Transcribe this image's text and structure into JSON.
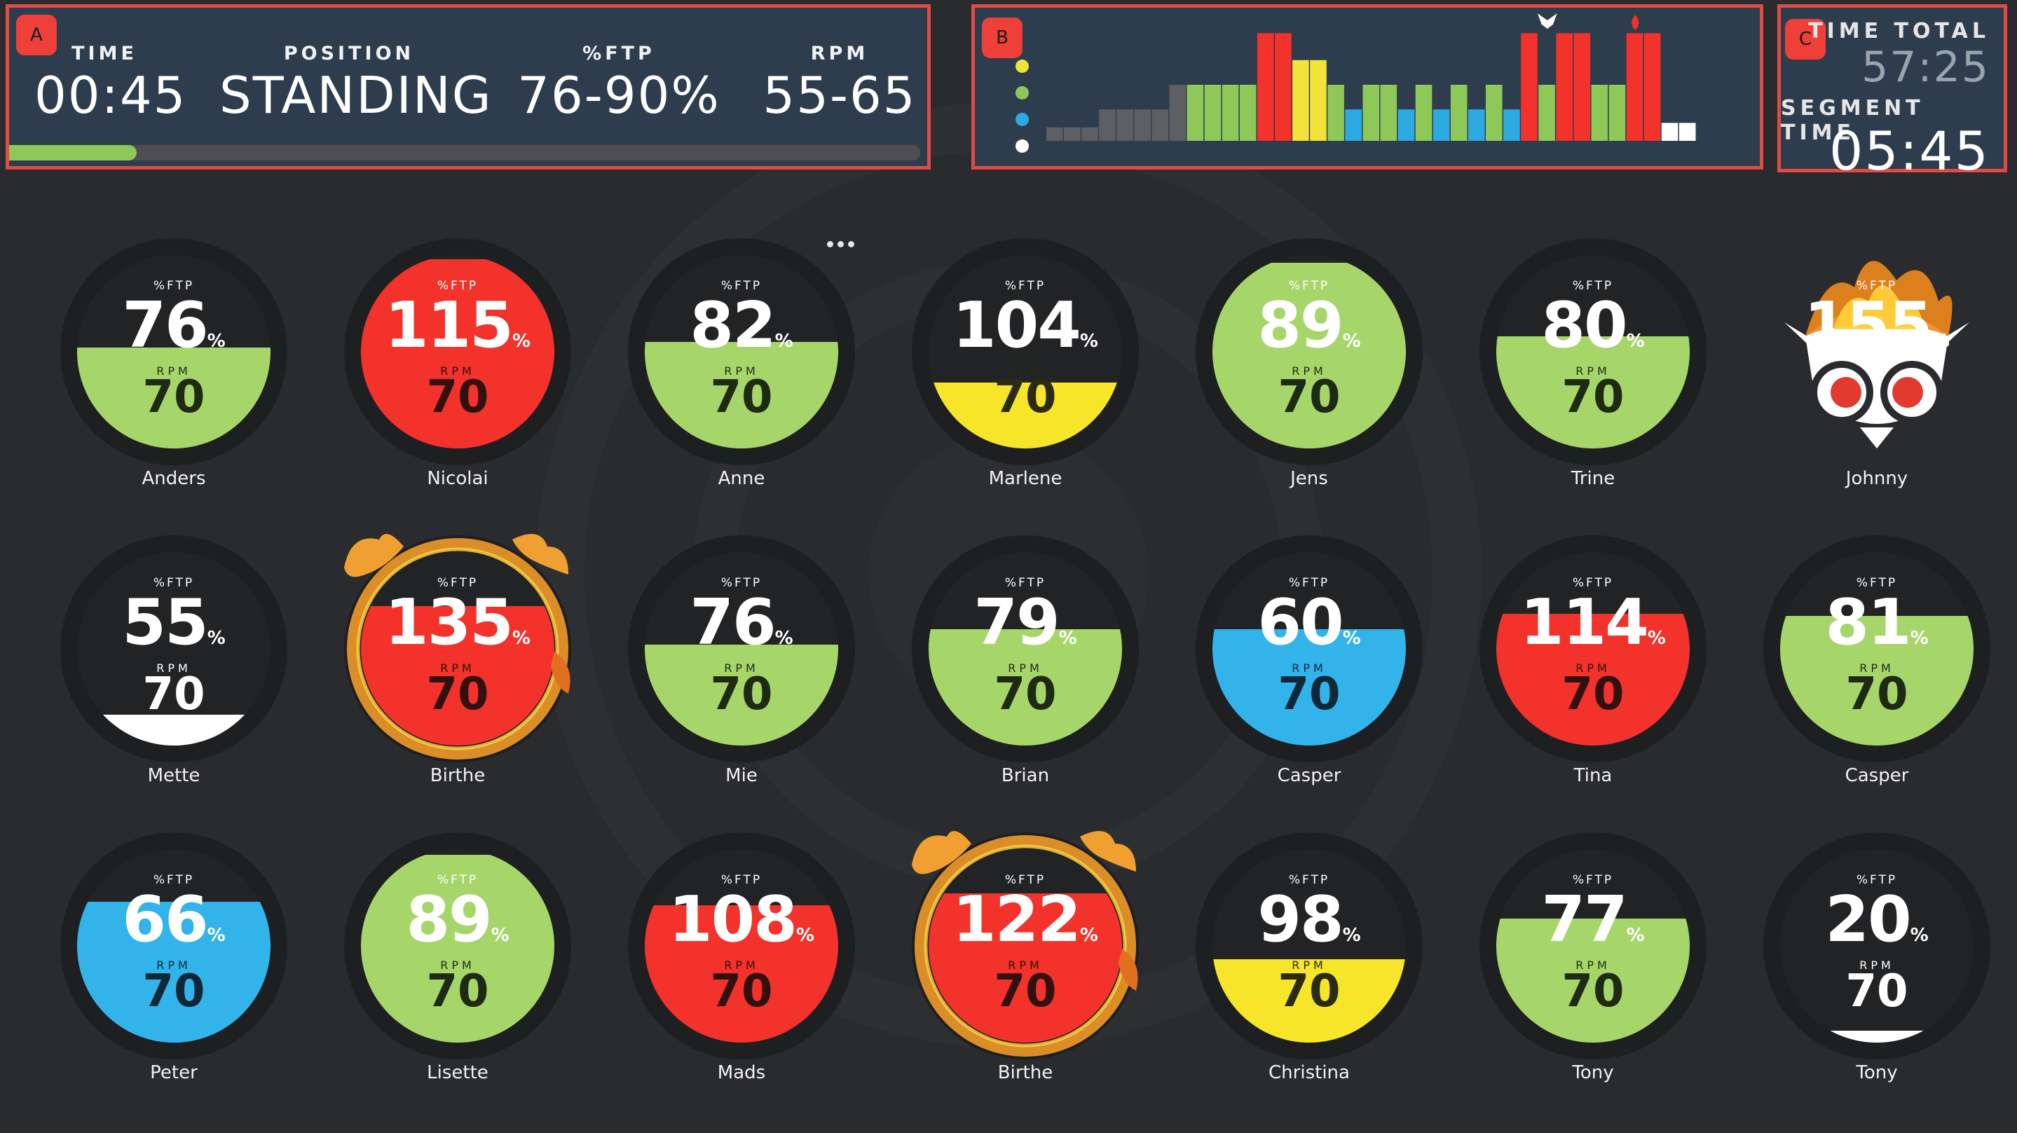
{
  "panels": {
    "a": {
      "badge": "A",
      "time_label": "TIME",
      "time_value": "00:45",
      "position_label": "POSITION",
      "position_value": "STANDING",
      "ftp_label": "%FTP",
      "ftp_value": "76-90%",
      "rpm_label": "RPM",
      "rpm_value": "55-65",
      "segment_progress": 0.14
    },
    "b": {
      "badge": "B",
      "zone_colors": [
        "#f2e23a",
        "#8ec859",
        "#2eaae2",
        "#ffffff"
      ],
      "icons": [
        "owl-icon",
        "flame-icon"
      ]
    },
    "c": {
      "badge": "C",
      "time_total_label": "TIME TOTAL",
      "time_total_value": "57:25",
      "segment_time_label": "SEGMENT TIME",
      "segment_time_value": "05:45"
    }
  },
  "zone_colors": {
    "green": "#a6d66a",
    "red": "#f2322b",
    "yellow": "#f6e529",
    "blue": "#32b4ea",
    "white": "#ffffff"
  },
  "riders": [
    {
      "name": "Anders",
      "ftp": "76",
      "rpm": "70",
      "zone": "green",
      "level": 0.52
    },
    {
      "name": "Nicolai",
      "ftp": "115",
      "rpm": "70",
      "zone": "red",
      "level": 0.98
    },
    {
      "name": "Anne",
      "ftp": "82",
      "rpm": "70",
      "zone": "green",
      "level": 0.55
    },
    {
      "name": "Marlene",
      "ftp": "104",
      "rpm": "70",
      "zone": "yellow",
      "level": 0.34
    },
    {
      "name": "Jens",
      "ftp": "89",
      "rpm": "70",
      "zone": "green",
      "level": 0.96
    },
    {
      "name": "Trine",
      "ftp": "80",
      "rpm": "70",
      "zone": "green",
      "level": 0.58
    },
    {
      "name": "Johnny",
      "ftp": "155",
      "rpm": "",
      "zone": "owl",
      "level": 1.0
    },
    {
      "name": "Mette",
      "ftp": "55",
      "rpm": "70",
      "zone": "white",
      "level": 0.16
    },
    {
      "name": "Birthe",
      "ftp": "135",
      "rpm": "70",
      "zone": "red",
      "level": 0.72,
      "fire": true
    },
    {
      "name": "Mie",
      "ftp": "76",
      "rpm": "70",
      "zone": "green",
      "level": 0.52
    },
    {
      "name": "Brian",
      "ftp": "79",
      "rpm": "70",
      "zone": "green",
      "level": 0.6
    },
    {
      "name": "Casper",
      "ftp": "60",
      "rpm": "70",
      "zone": "blue",
      "level": 0.6
    },
    {
      "name": "Tina",
      "ftp": "114",
      "rpm": "70",
      "zone": "red",
      "level": 0.68
    },
    {
      "name": "Casper",
      "ftp": "81",
      "rpm": "70",
      "zone": "green",
      "level": 0.67
    },
    {
      "name": "Peter",
      "ftp": "66",
      "rpm": "70",
      "zone": "blue",
      "level": 0.73
    },
    {
      "name": "Lisette",
      "ftp": "89",
      "rpm": "70",
      "zone": "green",
      "level": 0.97
    },
    {
      "name": "Mads",
      "ftp": "108",
      "rpm": "70",
      "zone": "red",
      "level": 0.71
    },
    {
      "name": "Birthe",
      "ftp": "122",
      "rpm": "70",
      "zone": "red",
      "level": 0.77,
      "fire": true
    },
    {
      "name": "Christina",
      "ftp": "98",
      "rpm": "70",
      "zone": "yellow",
      "level": 0.43
    },
    {
      "name": "Tony",
      "ftp": "77",
      "rpm": "70",
      "zone": "green",
      "level": 0.64
    },
    {
      "name": "Tony",
      "ftp": "20",
      "rpm": "70",
      "zone": "white",
      "level": 0.06
    }
  ],
  "rider_labels": {
    "ftp": "%FTP",
    "rpm": "RPM",
    "unit": "%"
  },
  "segment_chart": {
    "bars": [
      {
        "value": 0.12,
        "color": "#5e5f62"
      },
      {
        "value": 0.12,
        "color": "#5e5f62"
      },
      {
        "value": 0.12,
        "color": "#5e5f62"
      },
      {
        "value": 0.28,
        "color": "#5e5f62"
      },
      {
        "value": 0.28,
        "color": "#5e5f62"
      },
      {
        "value": 0.28,
        "color": "#5e5f62"
      },
      {
        "value": 0.28,
        "color": "#5e5f62"
      },
      {
        "value": 0.5,
        "color": "#5e5f62"
      },
      {
        "value": 0.5,
        "color": "#8ec859"
      },
      {
        "value": 0.5,
        "color": "#8ec859"
      },
      {
        "value": 0.5,
        "color": "#8ec859"
      },
      {
        "value": 0.5,
        "color": "#8ec859"
      },
      {
        "value": 0.96,
        "color": "#f2322b"
      },
      {
        "value": 0.96,
        "color": "#f2322b"
      },
      {
        "value": 0.72,
        "color": "#f2e23a"
      },
      {
        "value": 0.72,
        "color": "#f2e23a"
      },
      {
        "value": 0.5,
        "color": "#8ec859"
      },
      {
        "value": 0.28,
        "color": "#2eaae2"
      },
      {
        "value": 0.5,
        "color": "#8ec859"
      },
      {
        "value": 0.5,
        "color": "#8ec859"
      },
      {
        "value": 0.28,
        "color": "#2eaae2"
      },
      {
        "value": 0.5,
        "color": "#8ec859"
      },
      {
        "value": 0.28,
        "color": "#2eaae2"
      },
      {
        "value": 0.5,
        "color": "#8ec859"
      },
      {
        "value": 0.28,
        "color": "#2eaae2"
      },
      {
        "value": 0.5,
        "color": "#8ec859"
      },
      {
        "value": 0.28,
        "color": "#2eaae2"
      },
      {
        "value": 0.96,
        "color": "#f2322b"
      },
      {
        "value": 0.5,
        "color": "#8ec859"
      },
      {
        "value": 0.96,
        "color": "#f2322b"
      },
      {
        "value": 0.96,
        "color": "#f2322b"
      },
      {
        "value": 0.5,
        "color": "#8ec859"
      },
      {
        "value": 0.5,
        "color": "#8ec859"
      },
      {
        "value": 0.96,
        "color": "#f2322b"
      },
      {
        "value": 0.96,
        "color": "#f2322b"
      },
      {
        "value": 0.16,
        "color": "#ffffff"
      },
      {
        "value": 0.16,
        "color": "#ffffff"
      }
    ],
    "owl_marker_bar": 28,
    "flame_marker_bar": 33
  }
}
